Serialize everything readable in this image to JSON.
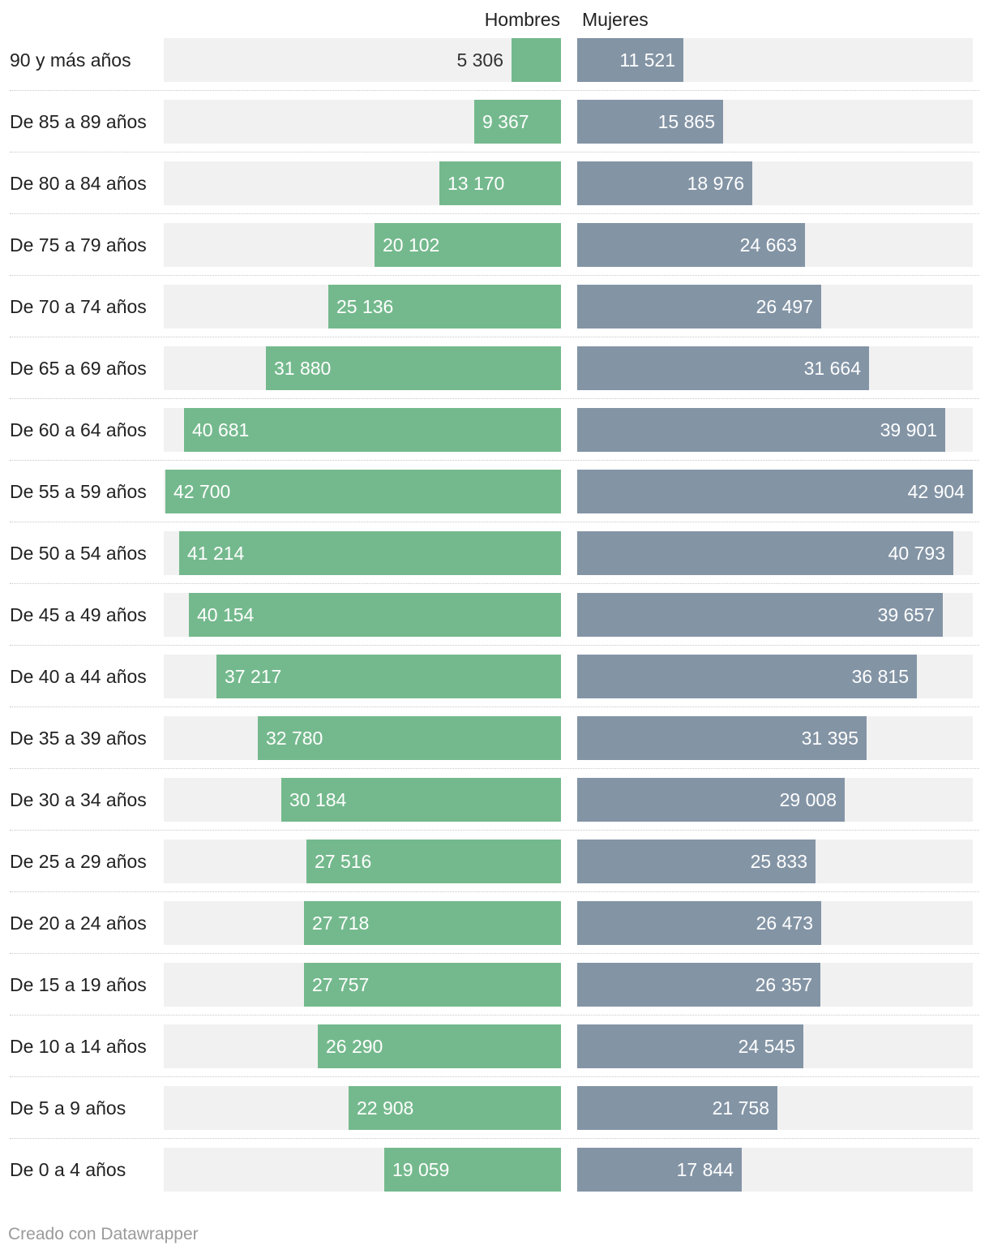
{
  "chart_data": {
    "type": "bar",
    "subtype": "population-pyramid",
    "series": [
      {
        "name": "Hombres",
        "color": "#74b98d",
        "values": [
          5306,
          9367,
          13170,
          20102,
          25136,
          31880,
          40681,
          42700,
          41214,
          40154,
          37217,
          32780,
          30184,
          27516,
          27718,
          27757,
          26290,
          22908,
          19059
        ]
      },
      {
        "name": "Mujeres",
        "color": "#8394a5",
        "values": [
          11521,
          15865,
          18976,
          24663,
          26497,
          31664,
          39901,
          42904,
          40793,
          39657,
          36815,
          31395,
          29008,
          25833,
          26473,
          26357,
          24545,
          21758,
          17844
        ]
      }
    ],
    "categories": [
      "90 y más años",
      "De 85 a 89 años",
      "De 80 a 84 años",
      "De 75 a 79 años",
      "De 70 a 74 años",
      "De 65 a 69 años",
      "De 60 a 64 años",
      "De 55 a 59 años",
      "De 50 a 54 años",
      "De 45 a 49 años",
      "De 40 a 44 años",
      "De 35 a 39 años",
      "De 30 a 34 años",
      "De 25 a 29 años",
      "De 20 a 24 años",
      "De 15 a 19 años",
      "De 10 a 14 años",
      "De 5 a 9 años",
      "De 0 a 4 años"
    ],
    "value_labels": {
      "Hombres": [
        "5 306",
        "9 367",
        "13 170",
        "20 102",
        "25 136",
        "31 880",
        "40 681",
        "42 700",
        "41 214",
        "40 154",
        "37 217",
        "32 780",
        "30 184",
        "27 516",
        "27 718",
        "27 757",
        "26 290",
        "22 908",
        "19 059"
      ],
      "Mujeres": [
        "11 521",
        "15 865",
        "18 976",
        "24 663",
        "26 497",
        "31 664",
        "39 901",
        "42 904",
        "40 793",
        "39 657",
        "36 815",
        "31 395",
        "29 008",
        "25 833",
        "26 473",
        "26 357",
        "24 545",
        "21 758",
        "17 844"
      ]
    },
    "xlim": [
      0,
      42904
    ],
    "track_color": "#f1f1f1",
    "footer": "Creado con Datawrapper"
  }
}
